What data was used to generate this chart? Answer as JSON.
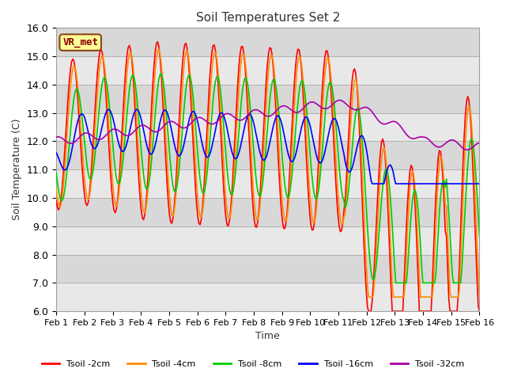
{
  "title": "Soil Temperatures Set 2",
  "xlabel": "Time",
  "ylabel": "Soil Temperature (C)",
  "ylim": [
    6.0,
    16.0
  ],
  "yticks": [
    6.0,
    7.0,
    8.0,
    9.0,
    10.0,
    11.0,
    12.0,
    13.0,
    14.0,
    15.0,
    16.0
  ],
  "xtick_labels": [
    "Feb 1",
    "Feb 2",
    "Feb 3",
    "Feb 4",
    "Feb 5",
    "Feb 6",
    "Feb 7",
    "Feb 8",
    "Feb 9",
    "Feb 10",
    "Feb 11",
    "Feb 12",
    "Feb 13",
    "Feb 14",
    "Feb 15",
    "Feb 16"
  ],
  "annotation_text": "VR_met",
  "annotation_color": "#8B0000",
  "annotation_bg": "#FFFF99",
  "series_colors": [
    "#FF0000",
    "#FF8C00",
    "#00CC00",
    "#0000FF",
    "#AA00AA"
  ],
  "series_labels": [
    "Tsoil -2cm",
    "Tsoil -4cm",
    "Tsoil -8cm",
    "Tsoil -16cm",
    "Tsoil -32cm"
  ],
  "bg_color": "#DCDCDC",
  "grid_stripe_color": "#C8C8C8",
  "n_points": 360
}
